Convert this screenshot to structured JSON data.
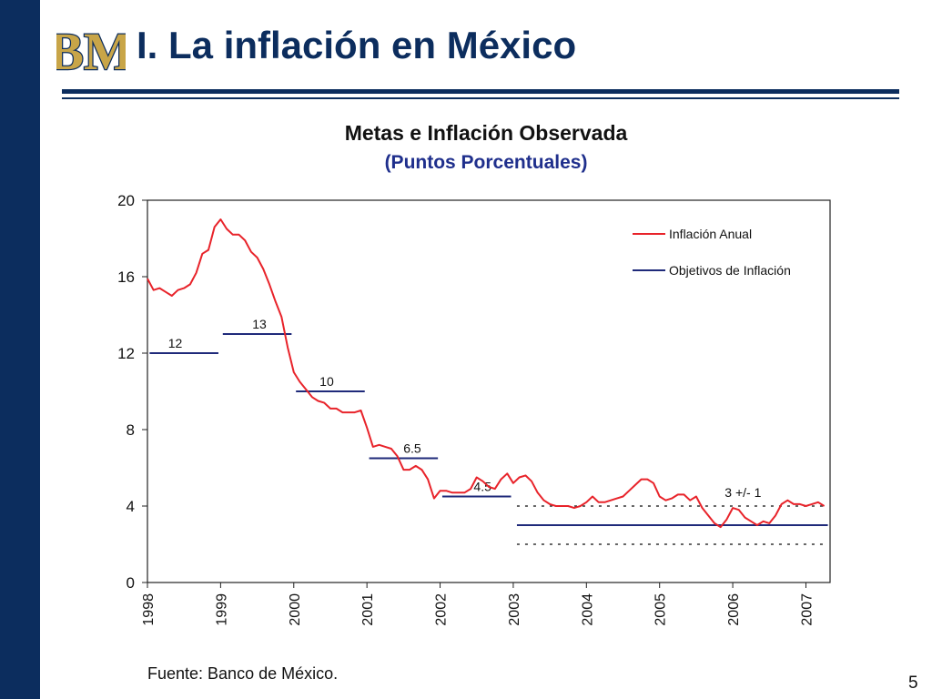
{
  "slide": {
    "title": "I. La inflación en México",
    "logo_text": "BM",
    "source": "Fuente: Banco de México.",
    "page_number": "5"
  },
  "colors": {
    "navy": "#0c2d5e",
    "inflation_line": "#e8232a",
    "target_line": "#1f2a7a",
    "logo_gold": "#c8a548"
  },
  "chart_data": {
    "type": "line",
    "title": "Metas e Inflación Observada",
    "subtitle": "(Puntos Porcentuales)",
    "xlabel": "",
    "ylabel": "",
    "ylim": [
      0,
      20
    ],
    "yticks": [
      "0",
      "4",
      "8",
      "12",
      "16",
      "20"
    ],
    "xlim": [
      1998.0,
      2007.33
    ],
    "xticks": [
      "1998",
      "1999",
      "2000",
      "2001",
      "2002",
      "2003",
      "2004",
      "2005",
      "2006",
      "2007"
    ],
    "grid": false,
    "legend_position": "top-right",
    "legend": [
      "Inflación Anual",
      "Objetivos de Inflación"
    ],
    "series": [
      {
        "name": "Inflación Anual",
        "points": [
          [
            1998.0,
            15.9
          ],
          [
            1998.083,
            15.3
          ],
          [
            1998.167,
            15.4
          ],
          [
            1998.25,
            15.2
          ],
          [
            1998.333,
            15.0
          ],
          [
            1998.417,
            15.3
          ],
          [
            1998.5,
            15.4
          ],
          [
            1998.583,
            15.6
          ],
          [
            1998.667,
            16.2
          ],
          [
            1998.75,
            17.2
          ],
          [
            1998.833,
            17.4
          ],
          [
            1998.917,
            18.6
          ],
          [
            1999.0,
            19.0
          ],
          [
            1999.083,
            18.5
          ],
          [
            1999.167,
            18.2
          ],
          [
            1999.25,
            18.2
          ],
          [
            1999.333,
            17.9
          ],
          [
            1999.417,
            17.3
          ],
          [
            1999.5,
            17.0
          ],
          [
            1999.583,
            16.4
          ],
          [
            1999.667,
            15.6
          ],
          [
            1999.75,
            14.7
          ],
          [
            1999.833,
            13.9
          ],
          [
            1999.917,
            12.3
          ],
          [
            2000.0,
            11.0
          ],
          [
            2000.083,
            10.5
          ],
          [
            2000.167,
            10.1
          ],
          [
            2000.25,
            9.7
          ],
          [
            2000.333,
            9.5
          ],
          [
            2000.417,
            9.4
          ],
          [
            2000.5,
            9.1
          ],
          [
            2000.583,
            9.1
          ],
          [
            2000.667,
            8.9
          ],
          [
            2000.75,
            8.9
          ],
          [
            2000.833,
            8.9
          ],
          [
            2000.917,
            9.0
          ],
          [
            2001.0,
            8.1
          ],
          [
            2001.083,
            7.1
          ],
          [
            2001.167,
            7.2
          ],
          [
            2001.25,
            7.1
          ],
          [
            2001.333,
            7.0
          ],
          [
            2001.417,
            6.6
          ],
          [
            2001.5,
            5.9
          ],
          [
            2001.583,
            5.9
          ],
          [
            2001.667,
            6.1
          ],
          [
            2001.75,
            5.9
          ],
          [
            2001.833,
            5.4
          ],
          [
            2001.917,
            4.4
          ],
          [
            2002.0,
            4.8
          ],
          [
            2002.083,
            4.8
          ],
          [
            2002.167,
            4.7
          ],
          [
            2002.25,
            4.7
          ],
          [
            2002.333,
            4.7
          ],
          [
            2002.417,
            4.9
          ],
          [
            2002.5,
            5.5
          ],
          [
            2002.583,
            5.3
          ],
          [
            2002.667,
            5.0
          ],
          [
            2002.75,
            4.9
          ],
          [
            2002.833,
            5.4
          ],
          [
            2002.917,
            5.7
          ],
          [
            2003.0,
            5.2
          ],
          [
            2003.083,
            5.5
          ],
          [
            2003.167,
            5.6
          ],
          [
            2003.25,
            5.3
          ],
          [
            2003.333,
            4.7
          ],
          [
            2003.417,
            4.3
          ],
          [
            2003.5,
            4.1
          ],
          [
            2003.583,
            4.0
          ],
          [
            2003.667,
            4.0
          ],
          [
            2003.75,
            4.0
          ],
          [
            2003.833,
            3.9
          ],
          [
            2003.917,
            4.0
          ],
          [
            2004.0,
            4.2
          ],
          [
            2004.083,
            4.5
          ],
          [
            2004.167,
            4.2
          ],
          [
            2004.25,
            4.2
          ],
          [
            2004.333,
            4.3
          ],
          [
            2004.417,
            4.4
          ],
          [
            2004.5,
            4.5
          ],
          [
            2004.583,
            4.8
          ],
          [
            2004.667,
            5.1
          ],
          [
            2004.75,
            5.4
          ],
          [
            2004.833,
            5.4
          ],
          [
            2004.917,
            5.2
          ],
          [
            2005.0,
            4.5
          ],
          [
            2005.083,
            4.3
          ],
          [
            2005.167,
            4.4
          ],
          [
            2005.25,
            4.6
          ],
          [
            2005.333,
            4.6
          ],
          [
            2005.417,
            4.3
          ],
          [
            2005.5,
            4.5
          ],
          [
            2005.583,
            3.9
          ],
          [
            2005.667,
            3.5
          ],
          [
            2005.75,
            3.1
          ],
          [
            2005.833,
            2.9
          ],
          [
            2005.917,
            3.3
          ],
          [
            2006.0,
            3.9
          ],
          [
            2006.083,
            3.8
          ],
          [
            2006.167,
            3.4
          ],
          [
            2006.25,
            3.2
          ],
          [
            2006.333,
            3.0
          ],
          [
            2006.417,
            3.2
          ],
          [
            2006.5,
            3.1
          ],
          [
            2006.583,
            3.5
          ],
          [
            2006.667,
            4.1
          ],
          [
            2006.75,
            4.3
          ],
          [
            2006.833,
            4.1
          ],
          [
            2006.917,
            4.1
          ],
          [
            2007.0,
            4.0
          ],
          [
            2007.083,
            4.1
          ],
          [
            2007.167,
            4.2
          ],
          [
            2007.25,
            4.0
          ]
        ]
      },
      {
        "name": "Objetivos de Inflación",
        "segments": [
          {
            "x0": 1998.03,
            "x1": 1998.97,
            "y": 12,
            "label": "12",
            "label_x": 1998.38
          },
          {
            "x0": 1999.03,
            "x1": 1999.97,
            "y": 13,
            "label": "13",
            "label_x": 1999.53
          },
          {
            "x0": 2000.03,
            "x1": 2000.97,
            "y": 10,
            "label": "10",
            "label_x": 2000.45
          },
          {
            "x0": 2001.03,
            "x1": 2001.97,
            "y": 6.5,
            "label": "6.5",
            "label_x": 2001.62
          },
          {
            "x0": 2002.03,
            "x1": 2002.97,
            "y": 4.5,
            "label": "4.5",
            "label_x": 2002.58
          }
        ],
        "band": {
          "x0": 2003.05,
          "x1": 2007.3,
          "center": 3,
          "upper": 4,
          "lower": 2,
          "label": "3 +/- 1",
          "label_x": 2006.14
        }
      }
    ]
  }
}
